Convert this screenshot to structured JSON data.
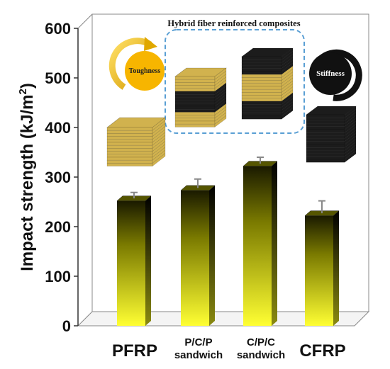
{
  "chart_data": {
    "type": "bar",
    "categories": [
      "PFRP",
      "P/C/P sandwich",
      "C/P/C sandwich",
      "CFRP"
    ],
    "category_lines": [
      [
        "PFRP"
      ],
      [
        "P/C/P",
        "sandwich"
      ],
      [
        "C/P/C",
        "sandwich"
      ],
      [
        "CFRP"
      ]
    ],
    "values": [
      252,
      273,
      322,
      222
    ],
    "errors": [
      17,
      23,
      18,
      30
    ],
    "ylabel": "Impact strength (kJ/m²)",
    "ylabel_main": "Impact strength (kJ/m",
    "ylabel_sup": "2",
    "ylabel_tail": ")",
    "ylim": [
      0,
      600
    ],
    "yticks": [
      0,
      100,
      200,
      300,
      400,
      500,
      600
    ],
    "grid": false,
    "bar_colors": {
      "top": "#1a1a00",
      "bottom": "#ffff33"
    }
  },
  "inset": {
    "box_title": "Hybrid fiber reinforced composites",
    "toughness_label": "Toughness",
    "stiffness_label": "Stiffness",
    "colors": {
      "gold": "#d1b24e",
      "dark": "#1c1c1c",
      "toughness_circle": "#f7b500",
      "dash": "#5a9fd4"
    }
  }
}
